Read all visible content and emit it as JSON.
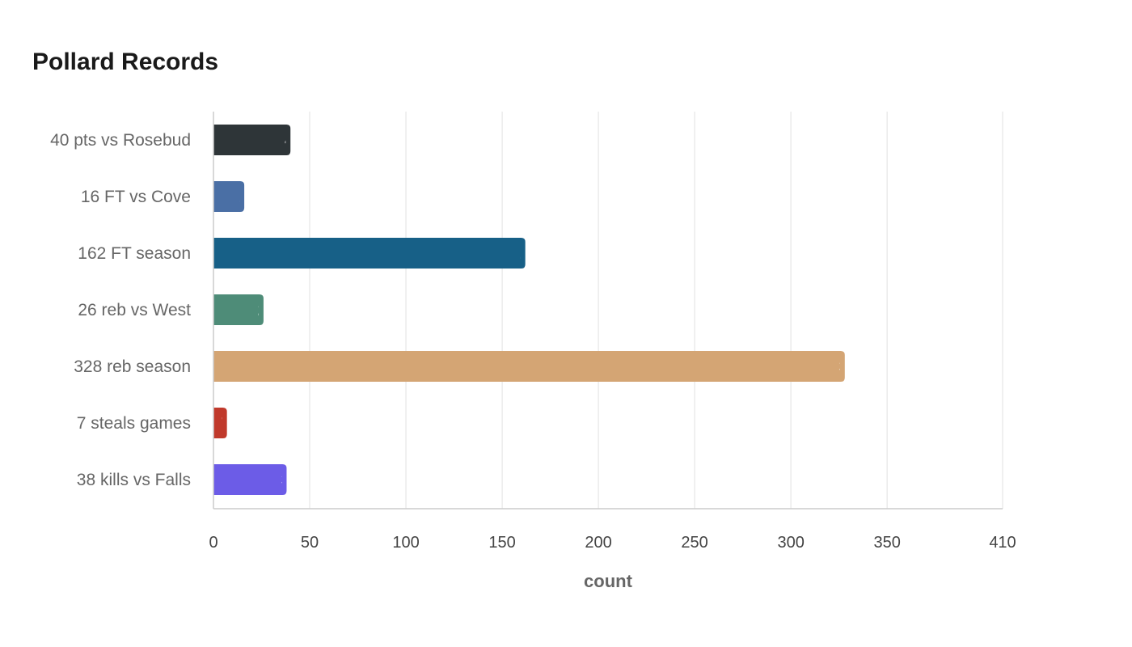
{
  "chart_data": {
    "type": "bar",
    "orientation": "horizontal",
    "title": "Pollard Records",
    "xlabel": "count",
    "ylabel": "",
    "categories": [
      "40 pts vs Rosebud",
      "16 FT vs Cove",
      "162 FT season",
      "26 reb vs West",
      "328 reb season",
      "7 steals games",
      "38 kills vs Falls"
    ],
    "values": [
      40,
      16,
      162,
      26,
      328,
      7,
      38
    ],
    "colors": [
      "#2e3538",
      "#4a6fa5",
      "#176087",
      "#4e8c78",
      "#d4a574",
      "#c0392b",
      "#6c5ce7"
    ],
    "xlim": [
      0,
      410
    ],
    "xticks": [
      0,
      50,
      100,
      150,
      200,
      250,
      300,
      350,
      410
    ],
    "grid": true,
    "legend": "none"
  }
}
